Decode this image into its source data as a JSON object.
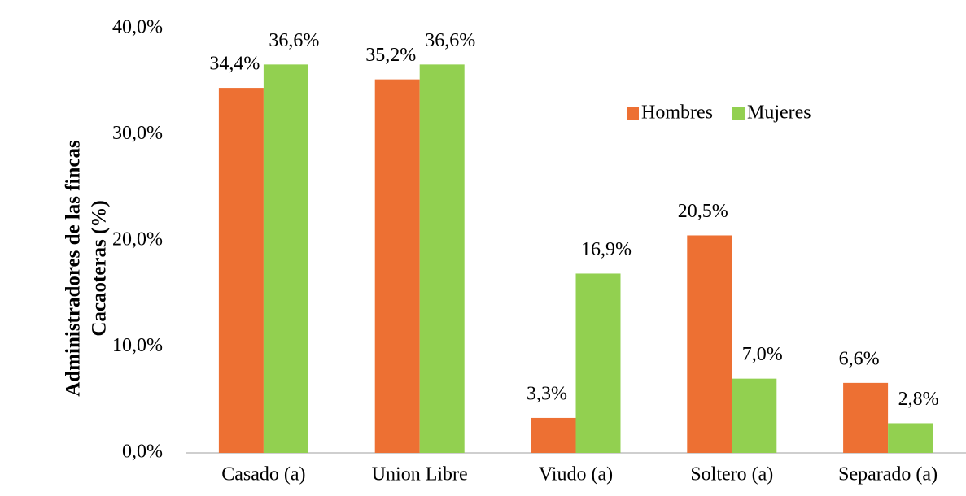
{
  "chart_data": {
    "type": "bar",
    "ylabel": [
      "Administradores de las fincas",
      "Cacaoteras (%)"
    ],
    "categories": [
      "Casado (a)",
      "Union Libre",
      "Viudo (a)",
      "Soltero (a)",
      "Separado (a)"
    ],
    "series": [
      {
        "name": "Hombres",
        "color": "#ed7033",
        "values": [
          34.4,
          35.2,
          3.3,
          20.5,
          6.6
        ],
        "value_labels": [
          "34,4%",
          "35,2%",
          "3,3%",
          "20,5%",
          "6,6%"
        ]
      },
      {
        "name": "Mujeres",
        "color": "#92d050",
        "values": [
          36.6,
          36.6,
          16.9,
          7.0,
          2.8
        ],
        "value_labels": [
          "36,6%",
          "36,6%",
          "16,9%",
          "7,0%",
          "2,8%"
        ]
      }
    ],
    "ylim": [
      0,
      40
    ],
    "yticks": [
      {
        "value": 0,
        "label": "0,0%"
      },
      {
        "value": 10,
        "label": "10,0%"
      },
      {
        "value": 20,
        "label": "20,0%"
      },
      {
        "value": 30,
        "label": "30,0%"
      },
      {
        "value": 40,
        "label": "40,0%"
      }
    ],
    "legend": "upper-right"
  }
}
